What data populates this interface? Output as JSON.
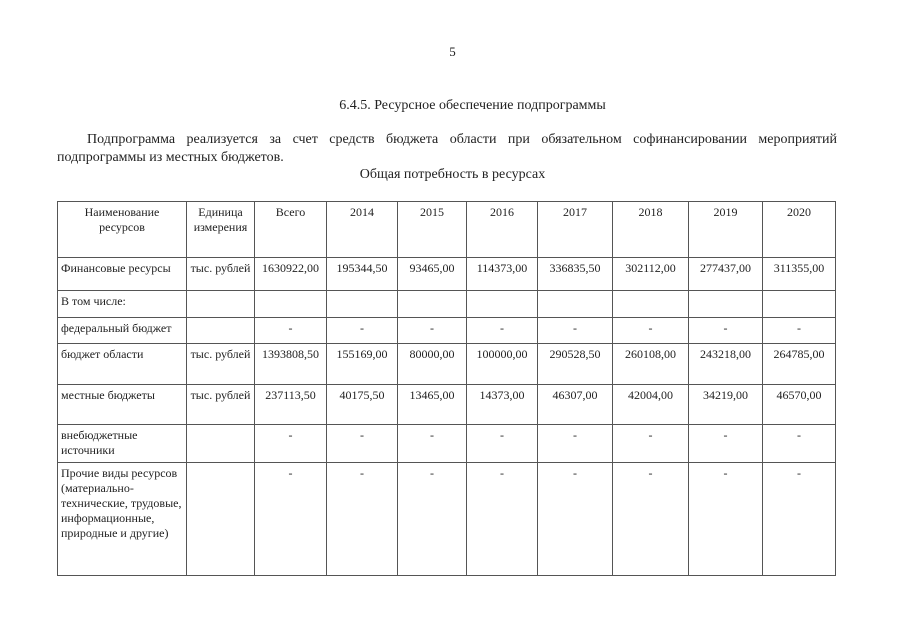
{
  "page_number": "5",
  "heading": "6.4.5. Ресурсное обеспечение подпрограммы",
  "paragraph": "Подпрограмма реализуется за счет средств бюджета области при обязательном софинансировании мероприятий подпрограммы из местных бюджетов.",
  "caption": "Общая потребность в ресурсах",
  "table": {
    "headers": [
      "Наименование ресурсов",
      "Единица измерения",
      "Всего",
      "2014",
      "2015",
      "2016",
      "2017",
      "2018",
      "2019",
      "2020"
    ],
    "rows": [
      [
        "Финансовые ресурсы",
        "тыс. рублей",
        "1630922,00",
        "195344,50",
        "93465,00",
        "114373,00",
        "336835,50",
        "302112,00",
        "277437,00",
        "311355,00"
      ],
      [
        "В том числе:",
        "",
        "",
        "",
        "",
        "",
        "",
        "",
        "",
        ""
      ],
      [
        "федеральный бюджет",
        "",
        "-",
        "-",
        "-",
        "-",
        "-",
        "-",
        "-",
        "-"
      ],
      [
        "бюджет области",
        "тыс. рублей",
        "1393808,50",
        "155169,00",
        "80000,00",
        "100000,00",
        "290528,50",
        "260108,00",
        "243218,00",
        "264785,00"
      ],
      [
        "местные бюджеты",
        "тыс. рублей",
        "237113,50",
        "40175,50",
        "13465,00",
        "14373,00",
        "46307,00",
        "42004,00",
        "34219,00",
        "46570,00"
      ],
      [
        "внебюджетные источники",
        "",
        "-",
        "-",
        "-",
        "-",
        "-",
        "-",
        "-",
        "-"
      ],
      [
        "Прочие виды ресурсов (материально-технические, трудовые, информационные, природные и другие)",
        "",
        "-",
        "-",
        "-",
        "-",
        "-",
        "-",
        "-",
        "-"
      ]
    ]
  }
}
